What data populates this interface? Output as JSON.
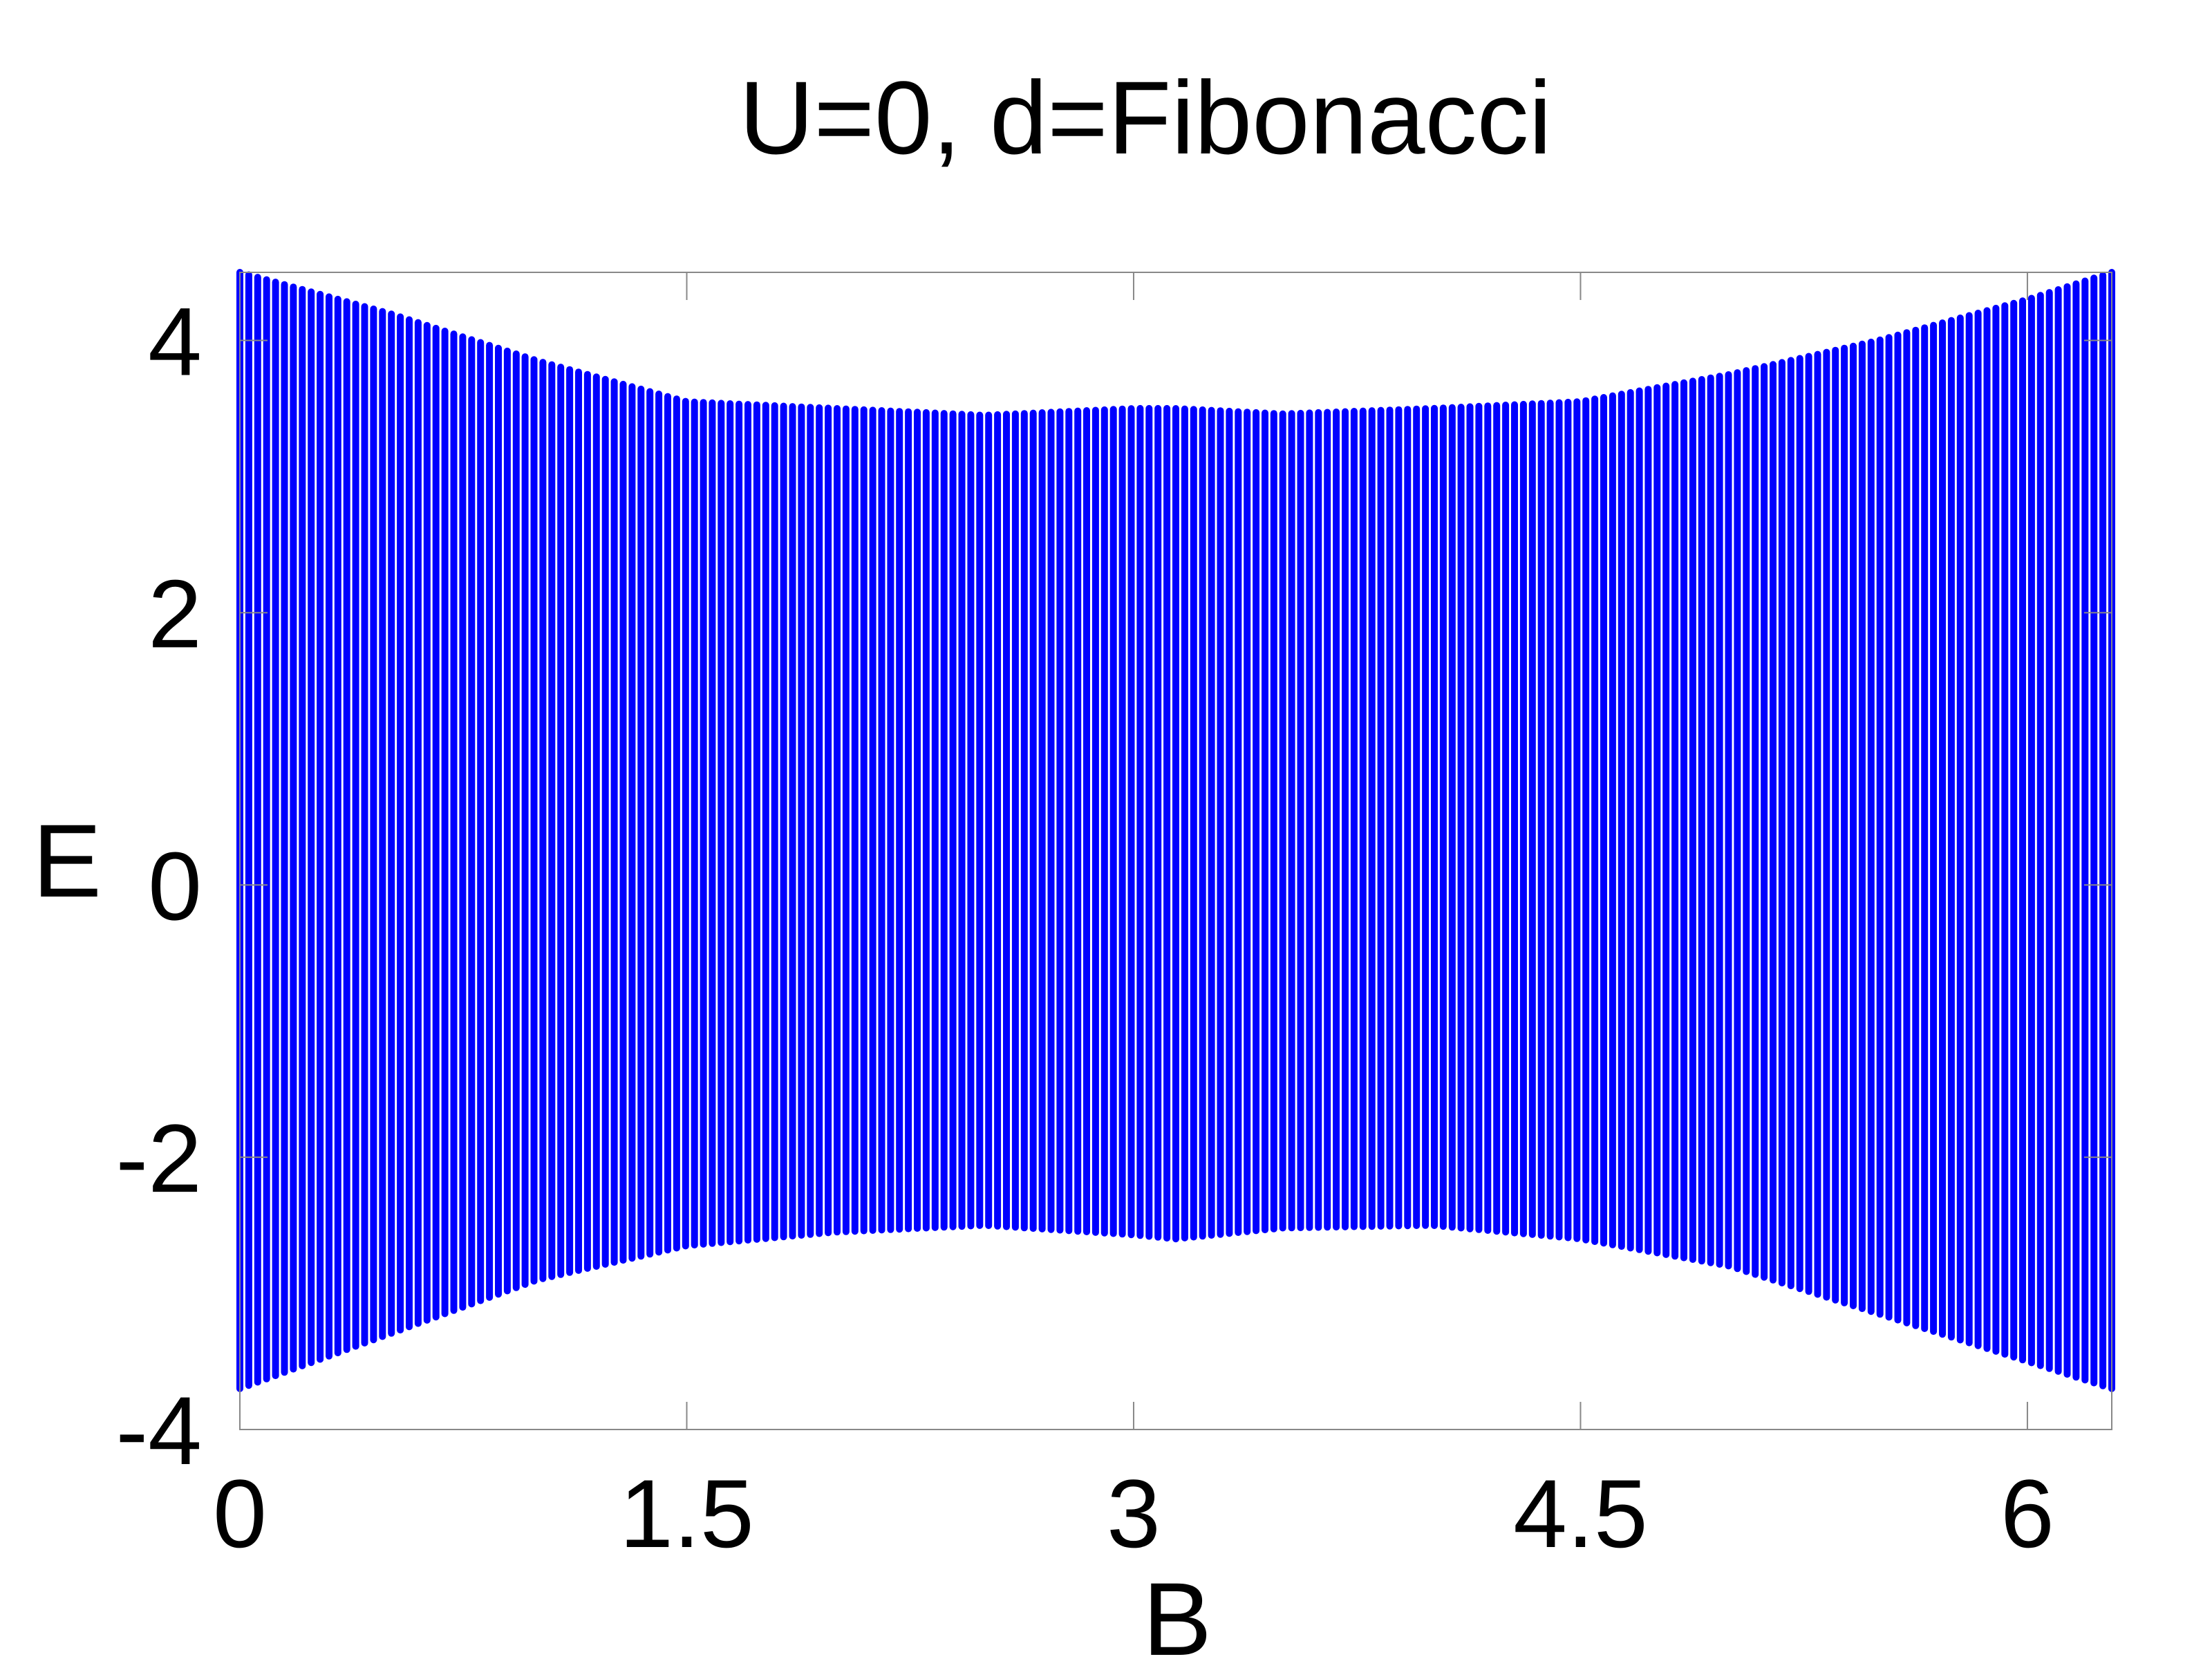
{
  "chart_data": {
    "type": "scatter",
    "title": "U=0, d=Fibonacci",
    "xlabel": "B",
    "ylabel": "E",
    "xlim": [
      0,
      6.2832
    ],
    "ylim": [
      -4,
      4.5
    ],
    "xticks": [
      "0",
      "1.5",
      "3",
      "4.5",
      "6"
    ],
    "yticks": [
      "4",
      "2",
      "0",
      "-2",
      "-4"
    ],
    "grid": false,
    "legend": "none",
    "series_color": "#0000ff",
    "columns": {
      "count": 211,
      "x_start": 0,
      "x_end": 6.2832
    },
    "band_edges": {
      "x": [
        0,
        0.5,
        1.0,
        1.5,
        2.0,
        2.5,
        3.0,
        3.14,
        3.5,
        4.0,
        4.5,
        5.0,
        5.5,
        6.0,
        6.2832
      ],
      "upper": [
        4.5,
        4.2,
        3.85,
        3.55,
        3.5,
        3.45,
        3.5,
        3.5,
        3.46,
        3.5,
        3.55,
        3.75,
        4.0,
        4.3,
        4.5
      ],
      "lower": [
        -3.7,
        -3.3,
        -2.9,
        -2.65,
        -2.55,
        -2.5,
        -2.57,
        -2.6,
        -2.52,
        -2.5,
        -2.6,
        -2.8,
        -3.15,
        -3.5,
        -3.7
      ]
    }
  }
}
